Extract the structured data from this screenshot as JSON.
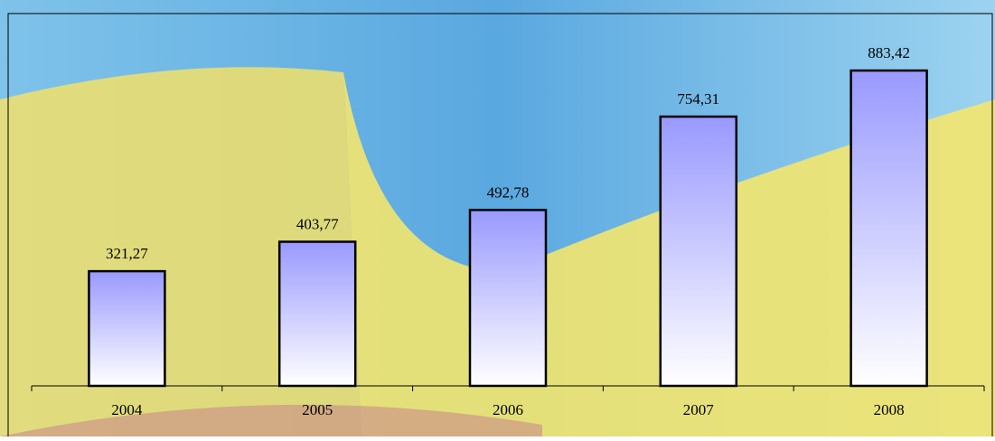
{
  "chart_data": {
    "type": "bar",
    "categories": [
      "2004",
      "2005",
      "2006",
      "2007",
      "2008"
    ],
    "values": [
      321.27,
      403.77,
      492.78,
      754.31,
      883.42
    ],
    "value_labels": [
      "321,27",
      "403,77",
      "492,78",
      "754,31",
      "883,42"
    ],
    "ylim": [
      0,
      1000
    ]
  }
}
